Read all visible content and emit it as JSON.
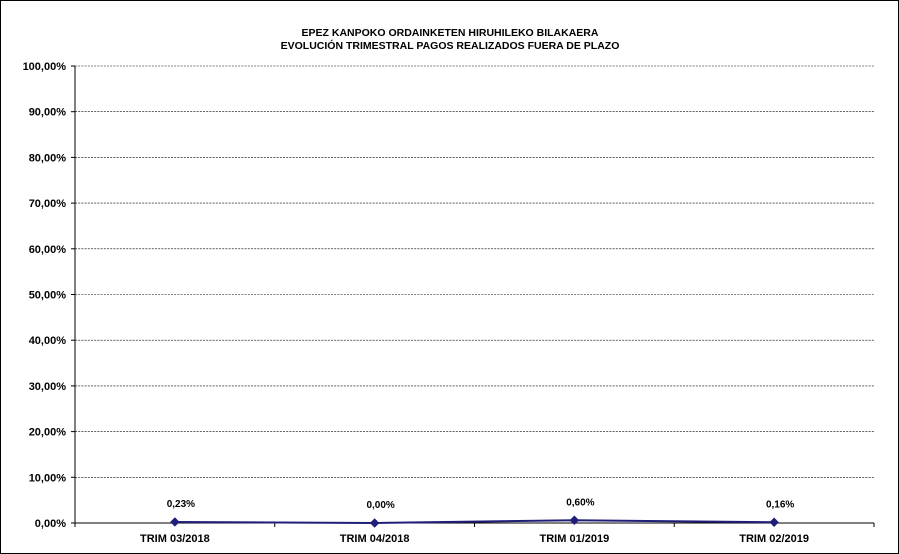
{
  "chart_data": {
    "type": "line",
    "title": "EPEZ KANPOKO ORDAINKETEN HIRUHILEKO BILAKAERA",
    "subtitle": "EVOLUCIÓN TRIMESTRAL PAGOS REALIZADOS FUERA DE PLAZO",
    "categories": [
      "TRIM 03/2018",
      "TRIM 04/2018",
      "TRIM 01/2019",
      "TRIM 02/2019"
    ],
    "series": [
      {
        "values": [
          0.23,
          0.0,
          0.6,
          0.16
        ],
        "labels": [
          "0,23%",
          "0,00%",
          "0,60%",
          "0,16%"
        ],
        "color": "#1F1F7A"
      }
    ],
    "y_ticks": [
      "0,00%",
      "10,00%",
      "20,00%",
      "30,00%",
      "40,00%",
      "50,00%",
      "60,00%",
      "70,00%",
      "80,00%",
      "90,00%",
      "100,00%"
    ],
    "ylim": [
      0,
      100
    ],
    "ystep": 10,
    "grid": true,
    "legend": "none"
  }
}
